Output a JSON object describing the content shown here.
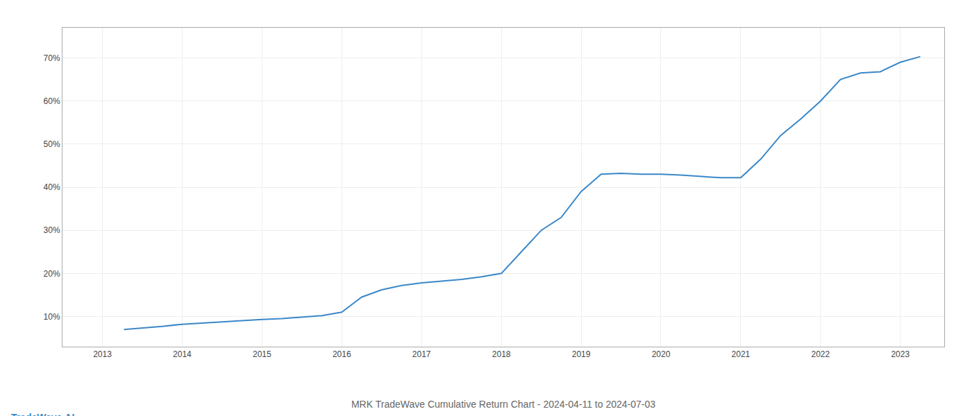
{
  "chart_data": {
    "type": "line",
    "title": "MRK TradeWave Cumulative Return Chart - 2024-04-11 to 2024-07-03",
    "x": [
      2013.27,
      2013.5,
      2013.75,
      2014.0,
      2014.25,
      2014.5,
      2014.75,
      2015.0,
      2015.25,
      2015.5,
      2015.75,
      2016.0,
      2016.25,
      2016.5,
      2016.75,
      2017.0,
      2017.25,
      2017.5,
      2017.75,
      2018.0,
      2018.25,
      2018.5,
      2018.75,
      2019.0,
      2019.25,
      2019.5,
      2019.75,
      2020.0,
      2020.25,
      2020.5,
      2020.75,
      2021.0,
      2021.25,
      2021.5,
      2021.75,
      2022.0,
      2022.25,
      2022.5,
      2022.75,
      2023.0,
      2023.25
    ],
    "values": [
      0.07,
      0.073,
      0.077,
      0.082,
      0.085,
      0.087,
      0.09,
      0.093,
      0.095,
      0.098,
      0.102,
      0.11,
      0.145,
      0.162,
      0.172,
      0.178,
      0.182,
      0.186,
      0.192,
      0.2,
      0.25,
      0.3,
      0.33,
      0.39,
      0.43,
      0.432,
      0.43,
      0.43,
      0.428,
      0.425,
      0.422,
      0.422,
      0.465,
      0.52,
      0.558,
      0.6,
      0.65,
      0.665,
      0.668,
      0.69,
      0.703
    ],
    "color": "#3a87c8",
    "xlim": [
      2012.5,
      2023.55
    ],
    "xticks": [
      2013,
      2014,
      2015,
      2016,
      2017,
      2018,
      2019,
      2020,
      2021,
      2022,
      2023
    ],
    "ylim": [
      0.03,
      0.77
    ],
    "yticks": [
      {
        "value": 0.1,
        "label": "10%"
      },
      {
        "value": 0.2,
        "label": "20%"
      },
      {
        "value": 0.3,
        "label": "30%"
      },
      {
        "value": 0.4,
        "label": "40%"
      },
      {
        "value": 0.5,
        "label": "50%"
      },
      {
        "value": 0.6,
        "label": "60%"
      },
      {
        "value": 0.7,
        "label": "70%"
      }
    ],
    "grid": true,
    "annotations": [
      {
        "text": "TradeWave.AI",
        "color": "#3a87c8"
      }
    ]
  }
}
